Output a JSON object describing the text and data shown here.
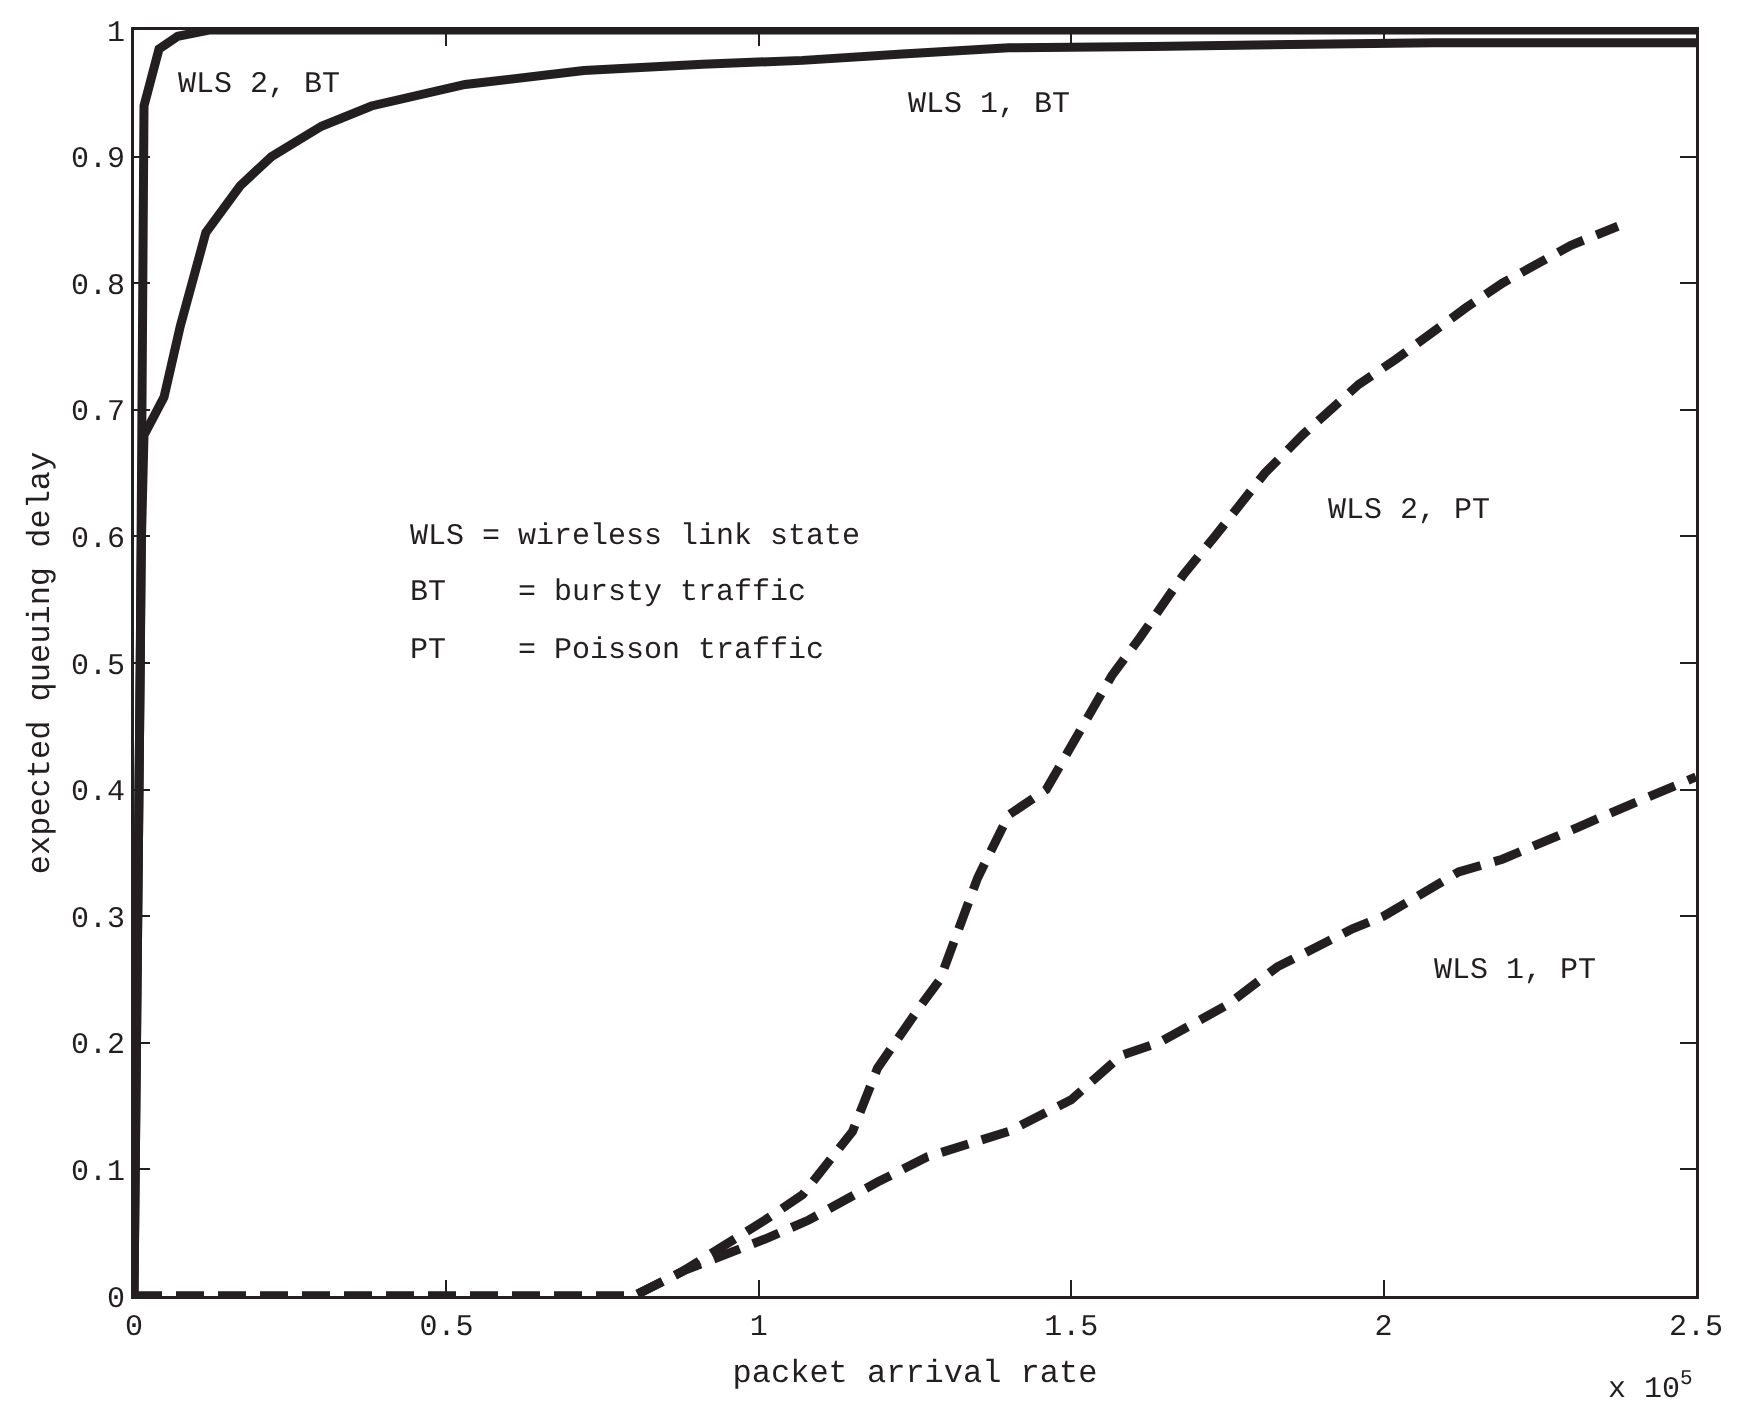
{
  "chart_data": {
    "type": "line",
    "xlabel": "packet arrival rate",
    "ylabel": "expected queuing delay",
    "xlim": [
      0,
      2.5
    ],
    "ylim": [
      0,
      1
    ],
    "xticks": [
      0,
      0.5,
      1,
      1.5,
      2,
      2.5
    ],
    "yticks": [
      0,
      0.1,
      0.2,
      0.3,
      0.4,
      0.5,
      0.6,
      0.7,
      0.8,
      0.9,
      1
    ],
    "grid": false,
    "legend": false,
    "marker": "none",
    "annotations": [
      "WLS = wireless link state",
      "BT    = bursty traffic",
      "PT    = Poisson traffic",
      "x 10$^{5}$"
    ],
    "series": [
      {
        "name": "WLS 2, BT",
        "color": "#231f20",
        "line_style": "solid",
        "x": [
          0,
          0.01,
          0.016,
          0.04,
          0.07,
          0.12,
          2.5
        ],
        "values": [
          0,
          0.5,
          0.94,
          0.985,
          0.995,
          1,
          1
        ]
      },
      {
        "name": "WLS 1, BT",
        "color": "#231f20",
        "line_style": "solid",
        "x": [
          0,
          0.008,
          0.012,
          0.016,
          0.048,
          0.074,
          0.115,
          0.17,
          0.22,
          0.3,
          0.38,
          0.53,
          0.72,
          0.91,
          1.07,
          1.23,
          1.4,
          1.63,
          2.08,
          2.5
        ],
        "values": [
          0,
          0.4,
          0.6,
          0.68,
          0.71,
          0.766,
          0.84,
          0.877,
          0.9,
          0.924,
          0.94,
          0.957,
          0.968,
          0.973,
          0.976,
          0.981,
          0.986,
          0.987,
          0.99,
          0.99
        ]
      },
      {
        "name": "WLS 2, PT",
        "color": "#231f20",
        "line_style": "dashed",
        "x": [
          0,
          0.8,
          0.88,
          1.01,
          1.07,
          1.15,
          1.19,
          1.26,
          1.29,
          1.35,
          1.4,
          1.46,
          1.495,
          1.565,
          1.61,
          1.68,
          1.73,
          1.81,
          1.87,
          1.96,
          2.02,
          2.13,
          2.19,
          2.3,
          2.375
        ],
        "values": [
          0,
          0,
          0.02,
          0.06,
          0.08,
          0.13,
          0.18,
          0.23,
          0.25,
          0.33,
          0.38,
          0.4,
          0.43,
          0.49,
          0.52,
          0.57,
          0.6,
          0.65,
          0.68,
          0.72,
          0.74,
          0.78,
          0.8,
          0.83,
          0.845
        ]
      },
      {
        "name": "WLS 1, PT",
        "color": "#231f20",
        "line_style": "dashed",
        "x": [
          0,
          0.8,
          0.88,
          1.01,
          1.08,
          1.19,
          1.27,
          1.4,
          1.5,
          1.58,
          1.64,
          1.75,
          1.83,
          1.95,
          2.0,
          2.12,
          2.19,
          2.31,
          2.38,
          2.5
        ],
        "values": [
          0,
          0,
          0.02,
          0.045,
          0.06,
          0.09,
          0.11,
          0.13,
          0.155,
          0.19,
          0.2,
          0.23,
          0.26,
          0.29,
          0.3,
          0.335,
          0.345,
          0.37,
          0.385,
          0.41
        ]
      }
    ]
  }
}
